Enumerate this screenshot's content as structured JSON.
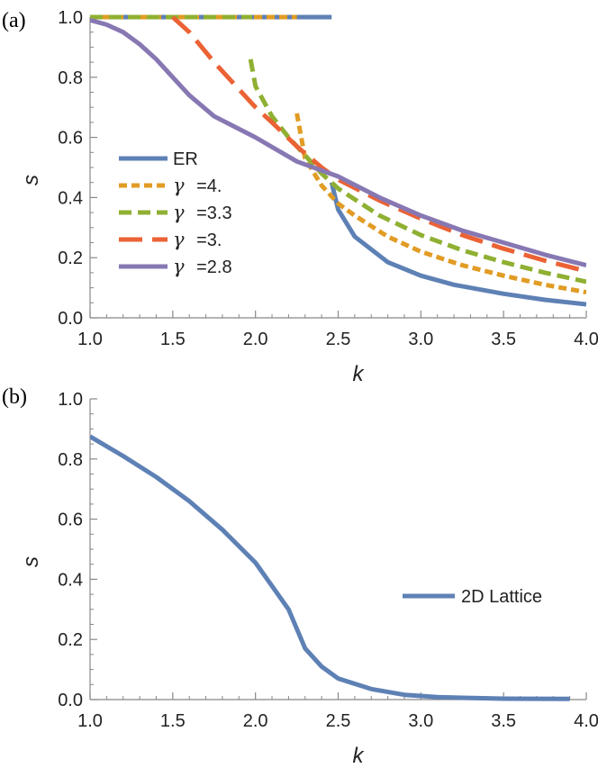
{
  "chart_data": [
    {
      "panel": "(a)",
      "type": "line",
      "xlabel": "k",
      "ylabel": "s",
      "xlim": [
        1.0,
        4.0
      ],
      "ylim": [
        0.0,
        1.0
      ],
      "xticks": [
        "1.0",
        "1.5",
        "2.0",
        "2.5",
        "3.0",
        "3.5",
        "4.0"
      ],
      "yticks": [
        "0.0",
        "0.2",
        "0.4",
        "0.6",
        "0.8",
        "1.0"
      ],
      "legend_position": "lower-left",
      "series": [
        {
          "name": "ER",
          "color": "#5e81b5",
          "dash": "solid",
          "lower": [
            [
              2.46,
              0.45
            ],
            [
              2.5,
              0.36
            ],
            [
              2.6,
              0.27
            ],
            [
              2.8,
              0.185
            ],
            [
              3.0,
              0.14
            ],
            [
              3.2,
              0.11
            ],
            [
              3.5,
              0.08
            ],
            [
              3.75,
              0.06
            ],
            [
              4.0,
              0.045
            ]
          ],
          "upper": [
            [
              1.0,
              1.0
            ],
            [
              2.46,
              1.0
            ]
          ]
        },
        {
          "name": "=4.",
          "gamma": true,
          "color": "#e19c24",
          "dash": "short",
          "lower": [
            [
              2.25,
              0.68
            ],
            [
              2.3,
              0.53
            ],
            [
              2.4,
              0.44
            ],
            [
              2.5,
              0.38
            ],
            [
              2.6,
              0.34
            ],
            [
              2.8,
              0.27
            ],
            [
              3.0,
              0.22
            ],
            [
              3.25,
              0.175
            ],
            [
              3.5,
              0.14
            ],
            [
              3.75,
              0.11
            ],
            [
              4.0,
              0.085
            ]
          ],
          "upper": [
            [
              1.0,
              1.0
            ],
            [
              2.25,
              1.0
            ]
          ]
        },
        {
          "name": "=3.3",
          "gamma": true,
          "color": "#8fb032",
          "dash": "medium",
          "lower": [
            [
              1.97,
              0.86
            ],
            [
              2.0,
              0.77
            ],
            [
              2.1,
              0.67
            ],
            [
              2.2,
              0.6
            ],
            [
              2.3,
              0.54
            ],
            [
              2.4,
              0.48
            ],
            [
              2.5,
              0.43
            ],
            [
              2.75,
              0.34
            ],
            [
              3.0,
              0.275
            ],
            [
              3.25,
              0.225
            ],
            [
              3.5,
              0.185
            ],
            [
              3.75,
              0.15
            ],
            [
              4.0,
              0.12
            ]
          ],
          "upper": [
            [
              1.0,
              1.0
            ],
            [
              1.98,
              1.0
            ]
          ]
        },
        {
          "name": "=3.",
          "gamma": true,
          "color": "#eb6235",
          "dash": "long",
          "lower": [
            [
              1.5,
              1.0
            ],
            [
              1.6,
              0.95
            ],
            [
              1.75,
              0.85
            ],
            [
              1.9,
              0.76
            ],
            [
              2.0,
              0.7
            ],
            [
              2.1,
              0.65
            ],
            [
              2.25,
              0.57
            ],
            [
              2.4,
              0.5
            ],
            [
              2.5,
              0.46
            ],
            [
              2.75,
              0.39
            ],
            [
              3.0,
              0.33
            ],
            [
              3.25,
              0.275
            ],
            [
              3.5,
              0.23
            ],
            [
              3.75,
              0.19
            ],
            [
              4.0,
              0.155
            ]
          ],
          "upper": []
        },
        {
          "name": "=2.8",
          "gamma": true,
          "color": "#8778b3",
          "dash": "solid",
          "lower": [
            [
              1.0,
              0.99
            ],
            [
              1.1,
              0.975
            ],
            [
              1.2,
              0.95
            ],
            [
              1.3,
              0.91
            ],
            [
              1.4,
              0.86
            ],
            [
              1.5,
              0.8
            ],
            [
              1.6,
              0.74
            ],
            [
              1.75,
              0.67
            ],
            [
              2.0,
              0.6
            ],
            [
              2.25,
              0.52
            ],
            [
              2.5,
              0.47
            ],
            [
              2.75,
              0.4
            ],
            [
              3.0,
              0.34
            ],
            [
              3.25,
              0.29
            ],
            [
              3.5,
              0.25
            ],
            [
              3.75,
              0.21
            ],
            [
              4.0,
              0.175
            ]
          ],
          "upper": []
        }
      ]
    },
    {
      "panel": "(b)",
      "type": "line",
      "xlabel": "k",
      "ylabel": "s",
      "xlim": [
        1.0,
        4.0
      ],
      "ylim": [
        0.0,
        1.0
      ],
      "xticks": [
        "1.0",
        "1.5",
        "2.0",
        "2.5",
        "3.0",
        "3.5",
        "4.0"
      ],
      "yticks": [
        "0.0",
        "0.2",
        "0.4",
        "0.6",
        "0.8",
        "1.0"
      ],
      "legend_position": "center-right",
      "series": [
        {
          "name": "2D Lattice",
          "color": "#5e81b5",
          "dash": "solid",
          "lower": [
            [
              1.0,
              0.875
            ],
            [
              1.2,
              0.81
            ],
            [
              1.4,
              0.74
            ],
            [
              1.6,
              0.66
            ],
            [
              1.8,
              0.565
            ],
            [
              2.0,
              0.455
            ],
            [
              2.2,
              0.3
            ],
            [
              2.3,
              0.17
            ],
            [
              2.4,
              0.11
            ],
            [
              2.5,
              0.07
            ],
            [
              2.7,
              0.035
            ],
            [
              2.9,
              0.016
            ],
            [
              3.1,
              0.008
            ],
            [
              3.5,
              0.003
            ],
            [
              3.9,
              0.002
            ]
          ],
          "upper": []
        }
      ]
    }
  ]
}
